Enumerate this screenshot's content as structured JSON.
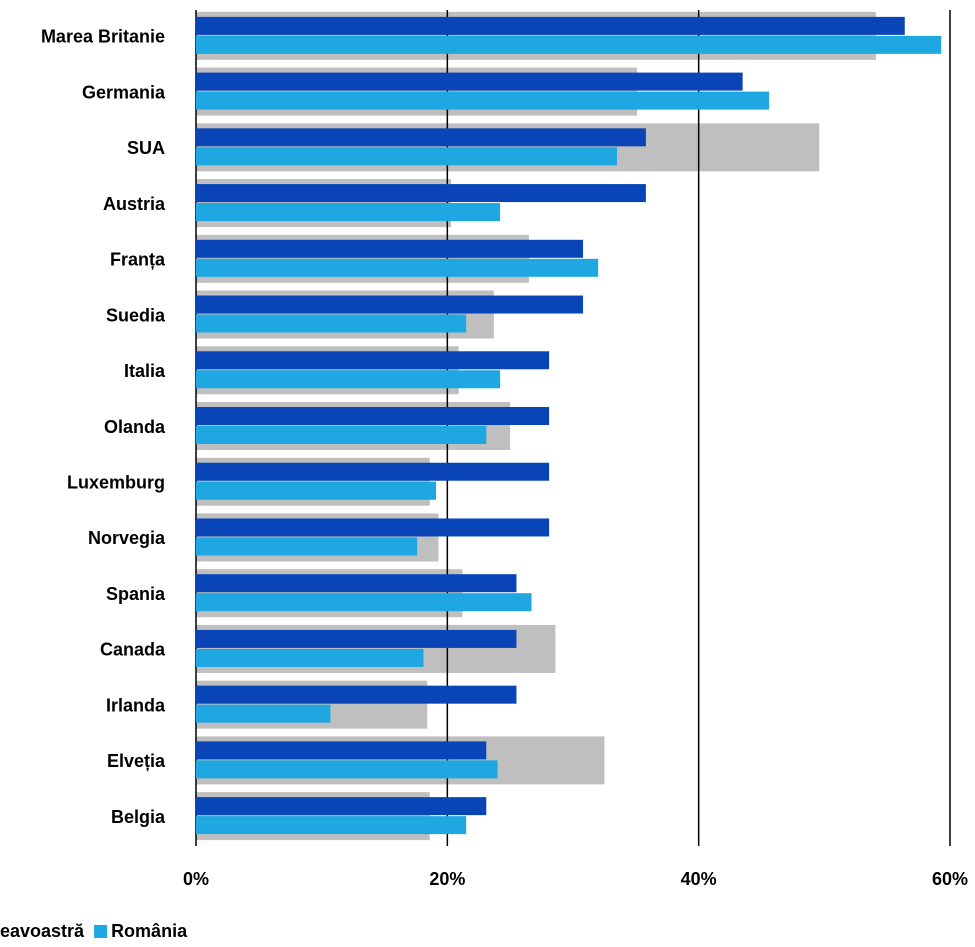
{
  "chart_data": {
    "type": "bar",
    "orientation": "horizontal",
    "categories": [
      "Marea Britanie",
      "Germania",
      "SUA",
      "Austria",
      "Franța",
      "Suedia",
      "Italia",
      "Olanda",
      "Luxemburg",
      "Norvegia",
      "Spania",
      "Canada",
      "Irlanda",
      "Elveția",
      "Belgia"
    ],
    "series": [
      {
        "color": "#bfbfbf",
        "values": [
          54.1,
          35.1,
          49.6,
          20.3,
          26.5,
          23.7,
          20.9,
          25.0,
          18.6,
          19.3,
          21.2,
          28.6,
          18.4,
          32.5,
          18.6
        ]
      },
      {
        "name": "eavoastră",
        "color": "#0a45b8",
        "values": [
          56.4,
          43.5,
          35.8,
          35.8,
          30.8,
          30.8,
          28.1,
          28.1,
          28.1,
          28.1,
          25.5,
          25.5,
          25.5,
          23.1,
          23.1
        ]
      },
      {
        "name": "România",
        "color": "#1ea7e1",
        "values": [
          59.3,
          45.6,
          33.5,
          24.2,
          32.0,
          21.5,
          24.2,
          23.1,
          19.1,
          17.6,
          26.7,
          18.1,
          10.7,
          24.0,
          21.5
        ]
      }
    ],
    "xlim": [
      0,
      60
    ],
    "xticks": [
      {
        "value": 0,
        "label": "0%"
      },
      {
        "value": 20,
        "label": "20%"
      },
      {
        "value": 40,
        "label": "40%"
      },
      {
        "value": 60,
        "label": "60%"
      }
    ],
    "grid": true
  }
}
